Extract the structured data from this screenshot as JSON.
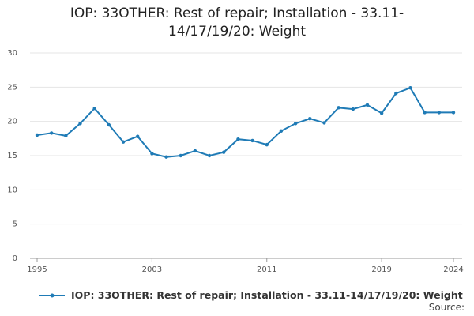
{
  "chart_data": {
    "type": "line",
    "title": "IOP: 33OTHER: Rest of repair; Installation - 33.11-14/17/19/20: Weight",
    "x": [
      1995,
      1996,
      1997,
      1998,
      1999,
      2000,
      2001,
      2002,
      2003,
      2004,
      2005,
      2006,
      2007,
      2008,
      2009,
      2010,
      2011,
      2012,
      2013,
      2014,
      2015,
      2016,
      2017,
      2018,
      2019,
      2020,
      2021,
      2022,
      2023,
      2024
    ],
    "series": [
      {
        "name": "IOP: 33OTHER: Rest of repair; Installation - 33.11-14/17/19/20: Weight",
        "color": "#1f7bb6",
        "values": [
          18.0,
          18.3,
          17.9,
          19.7,
          21.9,
          19.5,
          17.0,
          17.8,
          15.3,
          14.8,
          15.0,
          15.7,
          15.0,
          15.5,
          17.4,
          17.2,
          16.6,
          18.6,
          19.7,
          20.4,
          19.8,
          22.0,
          21.8,
          22.4,
          21.2,
          24.1,
          24.9,
          21.3,
          21.3,
          21.3
        ]
      }
    ],
    "xlim": [
      1995,
      2024
    ],
    "xticks": [
      1995,
      2003,
      2011,
      2019,
      2024
    ],
    "ylim": [
      0,
      30
    ],
    "yticks": [
      0,
      5,
      10,
      15,
      20,
      25,
      30
    ],
    "grid": true,
    "source": "Source:"
  }
}
